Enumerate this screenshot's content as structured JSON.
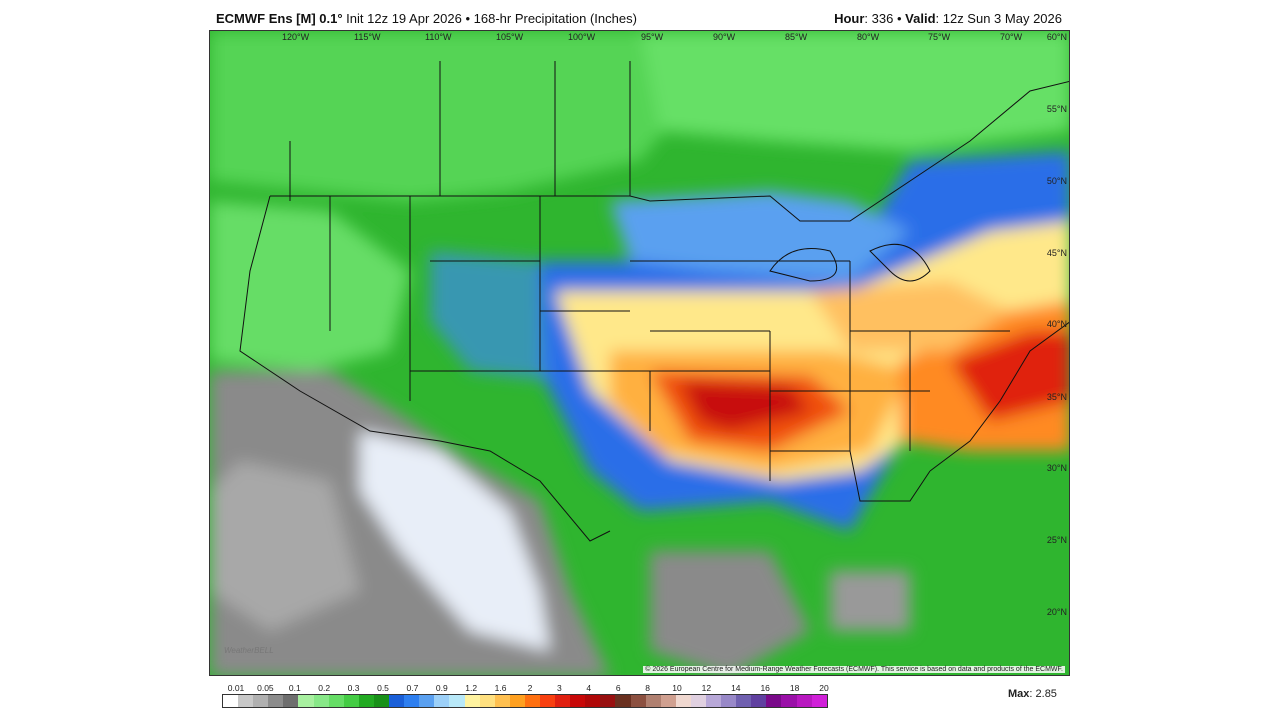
{
  "header": {
    "model": "ECMWF Ens [M] 0.1",
    "degree": "°",
    "init": "Init 12z 19 Apr 2026",
    "sep": "•",
    "product": "168-hr Precipitation (Inches)",
    "hour_label": "Hour",
    "hour_value": ": 336",
    "valid_label": "Valid",
    "valid_value": ": 12z Sun 3 May 2026"
  },
  "map": {
    "lon_labels": [
      "120°W",
      "115°W",
      "110°W",
      "105°W",
      "100°W",
      "95°W",
      "90°W",
      "85°W",
      "80°W",
      "75°W",
      "70°W"
    ],
    "lat_labels": [
      "60°N",
      "55°N",
      "50°N",
      "45°N",
      "40°N",
      "35°N",
      "30°N",
      "25°N",
      "20°N"
    ],
    "credit": "© 2026 European Centre for Medium-Range Weather Forecasts (ECMWF). This service is based on data and products of the ECMWF.",
    "logo_text": "WeatherBELL"
  },
  "colorbar": {
    "labels": [
      "0.01",
      "0.05",
      "0.1",
      "0.2",
      "0.3",
      "0.5",
      "0.7",
      "0.9",
      "1.2",
      "1.6",
      "2",
      "3",
      "4",
      "6",
      "8",
      "10",
      "12",
      "14",
      "16",
      "18",
      "20"
    ],
    "colors": [
      "#ffffff",
      "#c8c8c8",
      "#b0b0b0",
      "#8c8c8c",
      "#6e6e6e",
      "#a8f0a0",
      "#88e888",
      "#66dd66",
      "#44cc44",
      "#22aa22",
      "#189018",
      "#1a5fd8",
      "#2e7ff0",
      "#5aa0f0",
      "#9cd0f8",
      "#b8e8f8",
      "#fff3a0",
      "#ffe080",
      "#ffc050",
      "#ffa020",
      "#ff7010",
      "#f84010",
      "#e02010",
      "#c80808",
      "#b00808",
      "#981010",
      "#6a3020",
      "#8c5040",
      "#b08070",
      "#d0a090",
      "#f0d8d0",
      "#e0d0e0",
      "#b8a8d8",
      "#9888c8",
      "#7060b0",
      "#6040a0",
      "#7a0a8a",
      "#9a10a8",
      "#b818c0",
      "#d020d8"
    ],
    "max_label": "Max",
    "max_value": ": 2.85"
  }
}
